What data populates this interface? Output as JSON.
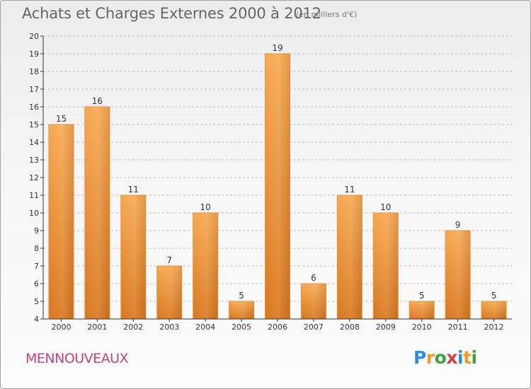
{
  "header": {
    "title": "Achats et Charges Externes 2000 à 2012",
    "unit": "(en milliers d'€)"
  },
  "footer": {
    "town": "MENNOUVEAUX",
    "logo": {
      "text": "Proxiti",
      "letters": [
        {
          "char": "P",
          "color": "#2f8fd6"
        },
        {
          "char": "r",
          "color": "#f29a1f"
        },
        {
          "char": "o",
          "color": "#3aa63a"
        },
        {
          "char": "x",
          "color": "#e23b3b"
        },
        {
          "char": "i",
          "color": "#2f8fd6"
        },
        {
          "char": "t",
          "color": "#f29a1f"
        },
        {
          "char": "i",
          "color": "#3aa63a"
        }
      ]
    }
  },
  "colors": {
    "bar_light": "#f7a851",
    "bar_dark": "#d9771e",
    "axis": "#333333",
    "grid": "#bdbdbd"
  },
  "chart_data": {
    "type": "bar",
    "title": "Achats et Charges Externes 2000 à 2012",
    "subtitle": "(en milliers d'€)",
    "xlabel": "",
    "ylabel": "",
    "categories": [
      "2000",
      "2001",
      "2002",
      "2003",
      "2004",
      "2005",
      "2006",
      "2007",
      "2008",
      "2009",
      "2010",
      "2011",
      "2012"
    ],
    "values": [
      15,
      16,
      11,
      7,
      10,
      5,
      19,
      6,
      11,
      10,
      5,
      9,
      5
    ],
    "ylim": [
      4,
      20
    ],
    "yticks": [
      4,
      5,
      6,
      7,
      8,
      9,
      10,
      11,
      12,
      13,
      14,
      15,
      16,
      17,
      18,
      19,
      20
    ],
    "grid": true,
    "legend": "none"
  }
}
